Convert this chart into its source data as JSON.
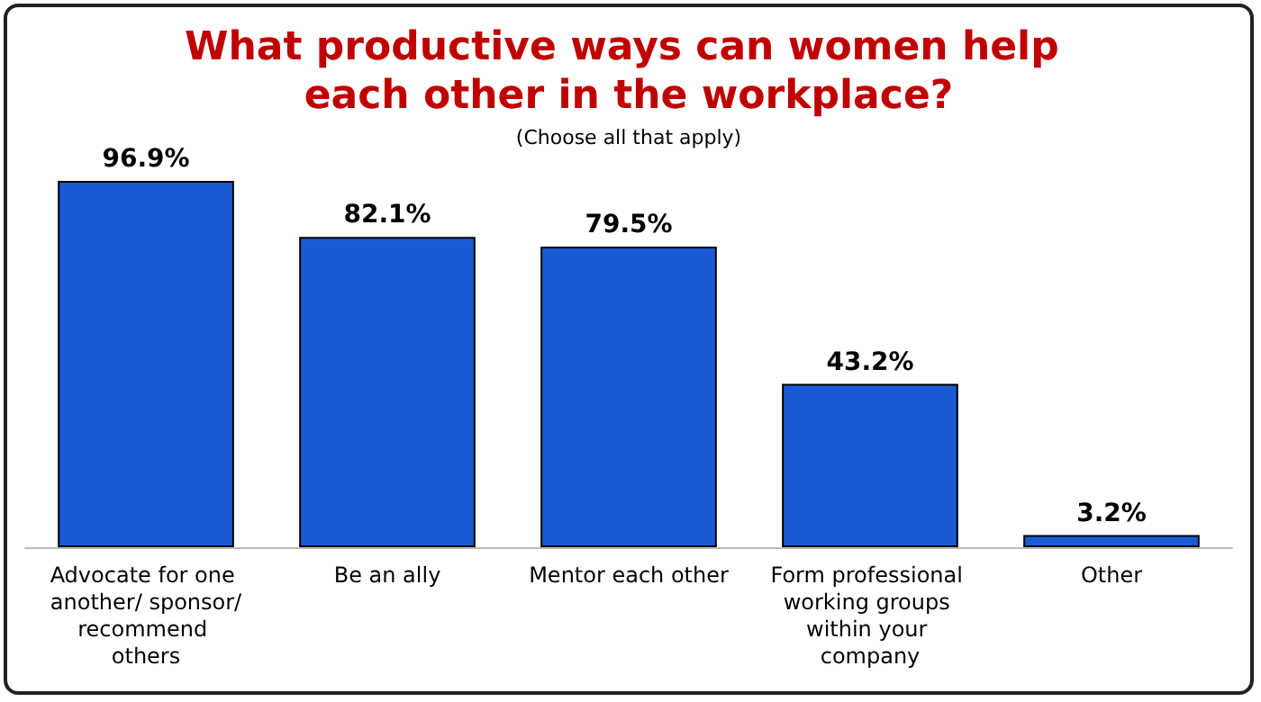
{
  "chart_data": {
    "type": "bar",
    "title": "What productive ways can women help each other in the workplace?",
    "subtitle": "(Choose all that apply)",
    "categories": [
      "Advocate for one another/ sponsor/recommend others",
      "Be an ally",
      "Mentor each other",
      "Form professional working groups within your company",
      "Other"
    ],
    "values": [
      96.9,
      82.1,
      79.5,
      43.2,
      3.2
    ],
    "value_labels": [
      "96.9%",
      "82.1%",
      "79.5%",
      "43.2%",
      "3.2%"
    ],
    "color": "#1a5ad6"
  }
}
